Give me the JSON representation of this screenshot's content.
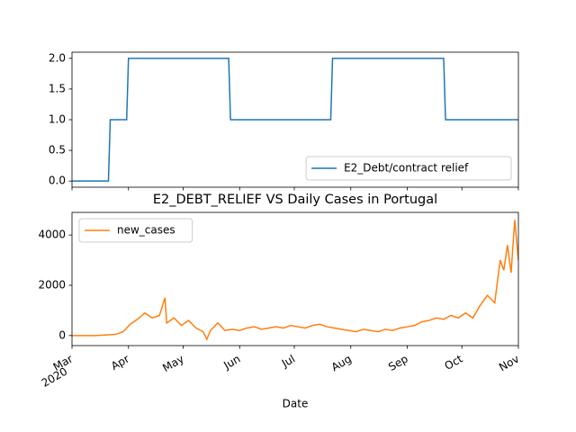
{
  "chart_data": [
    {
      "type": "line",
      "xlim": [
        "2020-03-01",
        "2020-11-01"
      ],
      "xticks": [
        "2020-03-01",
        "2020-04-01",
        "2020-05-01",
        "2020-06-01",
        "2020-07-01",
        "2020-08-01",
        "2020-09-01",
        "2020-10-01",
        "2020-11-01"
      ],
      "ylim": [
        -0.1,
        2.1
      ],
      "yticks": [
        {
          "value": 0,
          "label": "0.0"
        },
        {
          "value": 0.5,
          "label": "0.5"
        },
        {
          "value": 1,
          "label": "1.0"
        },
        {
          "value": 1.5,
          "label": "1.5"
        },
        {
          "value": 2,
          "label": "2.0"
        }
      ],
      "legend": "lower right",
      "x": [
        "2020-03-01",
        "2020-03-21",
        "2020-03-22",
        "2020-03-31",
        "2020-04-01",
        "2020-05-26",
        "2020-05-27",
        "2020-07-21",
        "2020-07-22",
        "2020-09-21",
        "2020-09-22",
        "2020-11-01"
      ],
      "series": [
        {
          "name": "E2_Debt/contract relief",
          "color": "#1f77b4",
          "values": [
            0,
            0,
            1,
            1,
            2,
            2,
            1,
            1,
            2,
            2,
            1,
            1
          ]
        }
      ]
    },
    {
      "type": "line",
      "title": "E2_DEBT_RELIEF VS Daily Cases in Portugal",
      "x_label": "Date",
      "x_year_label": "2020",
      "xlim": [
        "2020-03-01",
        "2020-11-01"
      ],
      "xticks": [
        {
          "value": "2020-03-01",
          "label": "Mar"
        },
        {
          "value": "2020-04-01",
          "label": "Apr"
        },
        {
          "value": "2020-05-01",
          "label": "May"
        },
        {
          "value": "2020-06-01",
          "label": "Jun"
        },
        {
          "value": "2020-07-01",
          "label": "Jul"
        },
        {
          "value": "2020-08-01",
          "label": "Aug"
        },
        {
          "value": "2020-09-01",
          "label": "Sep"
        },
        {
          "value": "2020-10-01",
          "label": "Oct"
        },
        {
          "value": "2020-11-01",
          "label": "Nov"
        }
      ],
      "ylim": [
        -400,
        4900
      ],
      "yticks": [
        0,
        2000,
        4000
      ],
      "legend": "upper left",
      "x": [
        "2020-03-01",
        "2020-03-05",
        "2020-03-09",
        "2020-03-13",
        "2020-03-17",
        "2020-03-21",
        "2020-03-25",
        "2020-03-29",
        "2020-04-02",
        "2020-04-06",
        "2020-04-10",
        "2020-04-14",
        "2020-04-18",
        "2020-04-21",
        "2020-04-22",
        "2020-04-26",
        "2020-04-30",
        "2020-05-04",
        "2020-05-08",
        "2020-05-12",
        "2020-05-14",
        "2020-05-16",
        "2020-05-20",
        "2020-05-24",
        "2020-05-28",
        "2020-06-01",
        "2020-06-05",
        "2020-06-09",
        "2020-06-13",
        "2020-06-17",
        "2020-06-21",
        "2020-06-25",
        "2020-06-29",
        "2020-07-03",
        "2020-07-07",
        "2020-07-11",
        "2020-07-15",
        "2020-07-19",
        "2020-07-23",
        "2020-07-27",
        "2020-07-31",
        "2020-08-04",
        "2020-08-08",
        "2020-08-12",
        "2020-08-16",
        "2020-08-20",
        "2020-08-24",
        "2020-08-28",
        "2020-09-01",
        "2020-09-05",
        "2020-09-09",
        "2020-09-13",
        "2020-09-17",
        "2020-09-21",
        "2020-09-25",
        "2020-09-29",
        "2020-10-03",
        "2020-10-07",
        "2020-10-11",
        "2020-10-15",
        "2020-10-19",
        "2020-10-22",
        "2020-10-24",
        "2020-10-26",
        "2020-10-28",
        "2020-10-30",
        "2020-11-01"
      ],
      "series": [
        {
          "name": "new_cases",
          "color": "#ff7f0e",
          "values": [
            0,
            0,
            0,
            0,
            10,
            30,
            50,
            150,
            450,
            650,
            900,
            700,
            800,
            1500,
            500,
            700,
            400,
            600,
            300,
            150,
            -150,
            200,
            500,
            200,
            250,
            200,
            300,
            350,
            250,
            300,
            350,
            300,
            400,
            350,
            300,
            400,
            450,
            350,
            300,
            250,
            200,
            150,
            250,
            200,
            150,
            250,
            200,
            300,
            350,
            400,
            550,
            600,
            700,
            650,
            800,
            700,
            900,
            700,
            1200,
            1600,
            1300,
            3000,
            2600,
            3600,
            2500,
            4600,
            3000
          ]
        }
      ]
    }
  ]
}
